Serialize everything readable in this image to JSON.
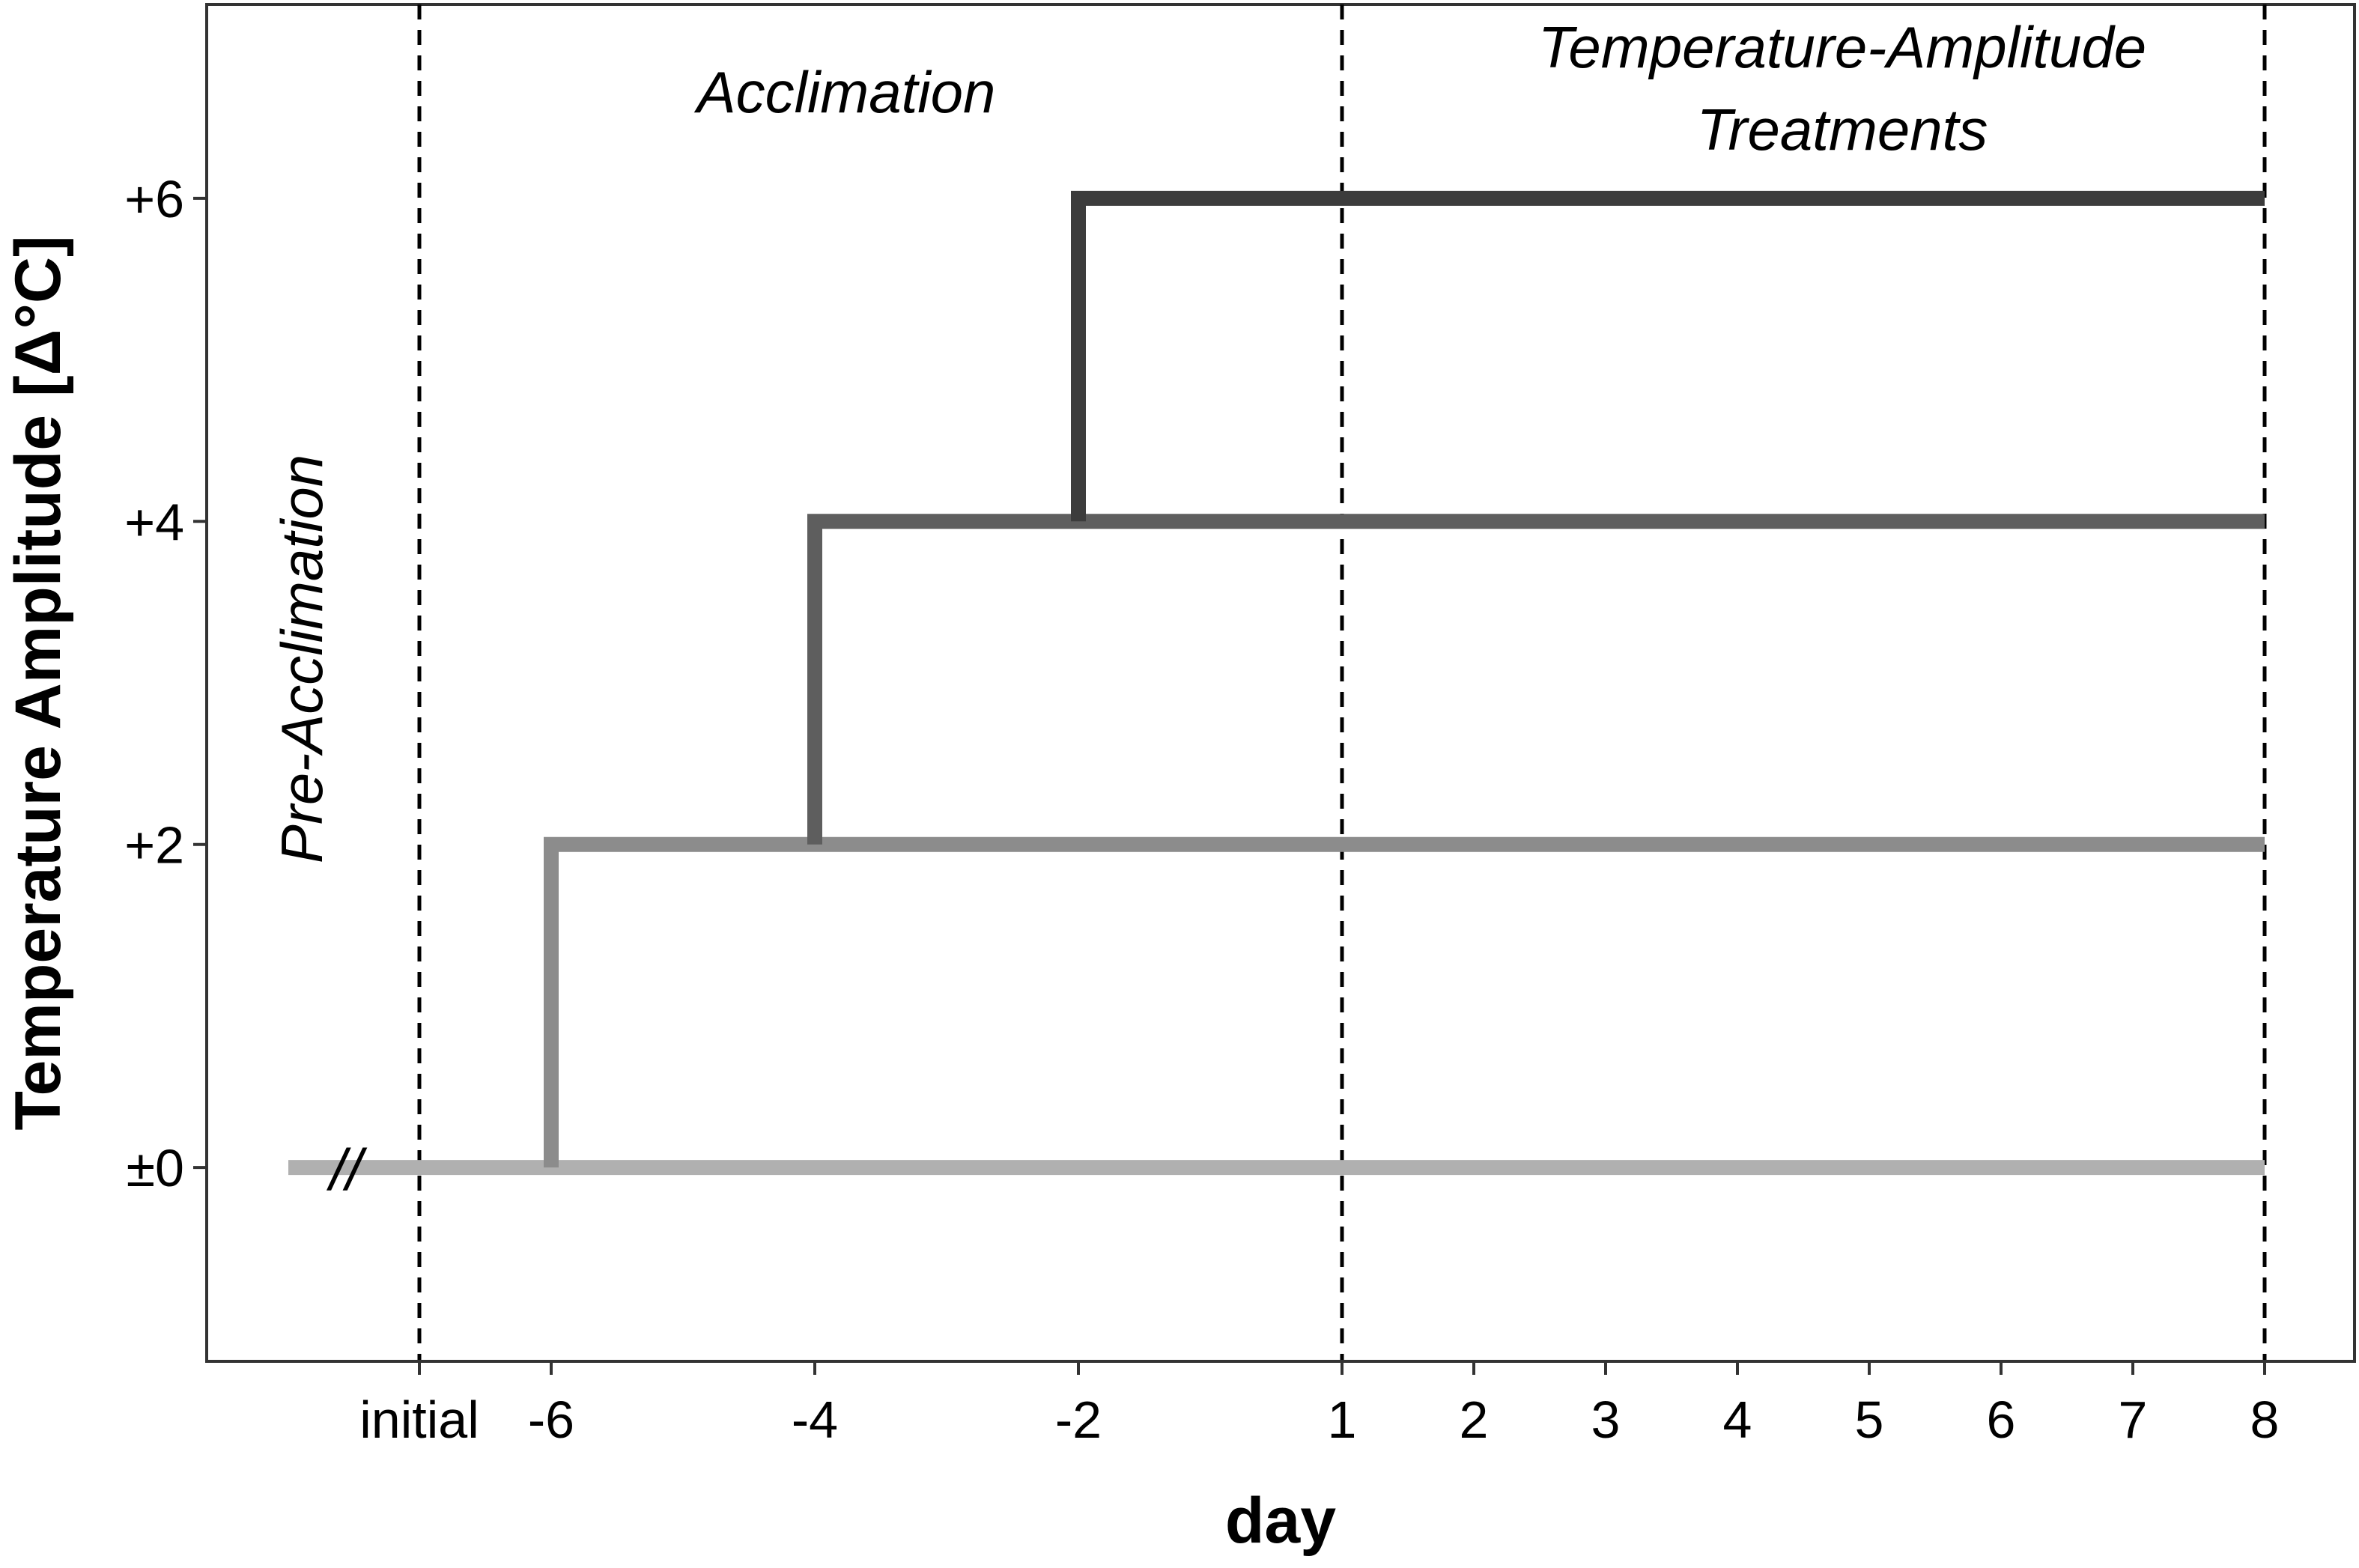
{
  "chart_data": {
    "type": "line",
    "xlabel": "day",
    "ylabel": "Temperature Amplitude [Δ°C]",
    "x_positions": [
      "start",
      "initial",
      -6,
      -4,
      -2,
      1,
      2,
      3,
      4,
      5,
      6,
      7,
      8
    ],
    "x_ticks": [
      {
        "label": "initial",
        "at": "initial"
      },
      {
        "label": "-6",
        "at": -6
      },
      {
        "label": "-4",
        "at": -4
      },
      {
        "label": "-2",
        "at": -2
      },
      {
        "label": "1",
        "at": 1
      },
      {
        "label": "2",
        "at": 2
      },
      {
        "label": "3",
        "at": 3
      },
      {
        "label": "4",
        "at": 4
      },
      {
        "label": "5",
        "at": 5
      },
      {
        "label": "6",
        "at": 6
      },
      {
        "label": "7",
        "at": 7
      },
      {
        "label": "8",
        "at": 8
      }
    ],
    "y_ticks": [
      {
        "label": "±0",
        "value": 0
      },
      {
        "label": "+2",
        "value": 2
      },
      {
        "label": "+4",
        "value": 4
      },
      {
        "label": "+6",
        "value": 6
      }
    ],
    "ylim": [
      -1.2,
      7.2
    ],
    "grid": false,
    "phase_boundaries": [
      "initial",
      1,
      8
    ],
    "phases": [
      {
        "label": "Pre-Acclimation",
        "lines": [
          "Pre-Acclimation"
        ],
        "rotated": true
      },
      {
        "label": "Acclimation",
        "lines": [
          "Acclimation"
        ],
        "rotated": false
      },
      {
        "label": "Temperature-Amplitude Treatments",
        "lines": [
          "Temperature-Amplitude",
          "Treatments"
        ],
        "rotated": false
      }
    ],
    "axis_break_marker": "//",
    "series": [
      {
        "color": "#b0b0b0",
        "points": [
          [
            "start",
            0
          ],
          [
            8,
            0
          ]
        ]
      },
      {
        "color": "#8c8c8c",
        "points": [
          [
            -6,
            0
          ],
          [
            -6,
            2
          ],
          [
            8,
            2
          ]
        ]
      },
      {
        "color": "#5e5e5e",
        "points": [
          [
            -4,
            2
          ],
          [
            -4,
            4
          ],
          [
            8,
            4
          ]
        ]
      },
      {
        "color": "#3c3c3c",
        "points": [
          [
            -2,
            4
          ],
          [
            -2,
            6
          ],
          [
            8,
            6
          ]
        ]
      }
    ]
  }
}
